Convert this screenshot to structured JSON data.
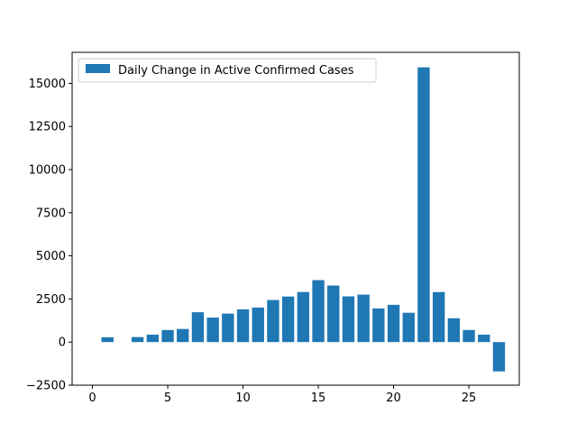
{
  "chart_data": {
    "type": "bar",
    "x": [
      1,
      2,
      3,
      4,
      5,
      6,
      7,
      8,
      9,
      10,
      11,
      12,
      13,
      14,
      15,
      16,
      17,
      18,
      19,
      20,
      21,
      22,
      23,
      24,
      25,
      26,
      27
    ],
    "values": [
      280,
      0,
      290,
      430,
      700,
      760,
      1730,
      1420,
      1650,
      1900,
      2000,
      2440,
      2640,
      2900,
      3590,
      3280,
      2650,
      2750,
      1950,
      2160,
      1700,
      15930,
      2900,
      1380,
      700,
      430,
      -1700
    ],
    "series": [
      {
        "name": "Daily Change in Active Confirmed Cases",
        "color": "#1f77b4"
      }
    ],
    "xlim": [
      -1.35,
      28.35
    ],
    "ylim": [
      -2500,
      16800
    ],
    "xticks": [
      0,
      5,
      10,
      15,
      20,
      25
    ],
    "xtick_labels": [
      "0",
      "5",
      "10",
      "15",
      "20",
      "25"
    ],
    "yticks": [
      -2500,
      0,
      2500,
      5000,
      7500,
      10000,
      12500,
      15000
    ],
    "ytick_labels": [
      "−2500",
      "0",
      "2500",
      "5000",
      "7500",
      "10000",
      "12500",
      "15000"
    ],
    "legend_position": "upper-left",
    "grid": false,
    "title": "",
    "xlabel": "",
    "ylabel": ""
  }
}
